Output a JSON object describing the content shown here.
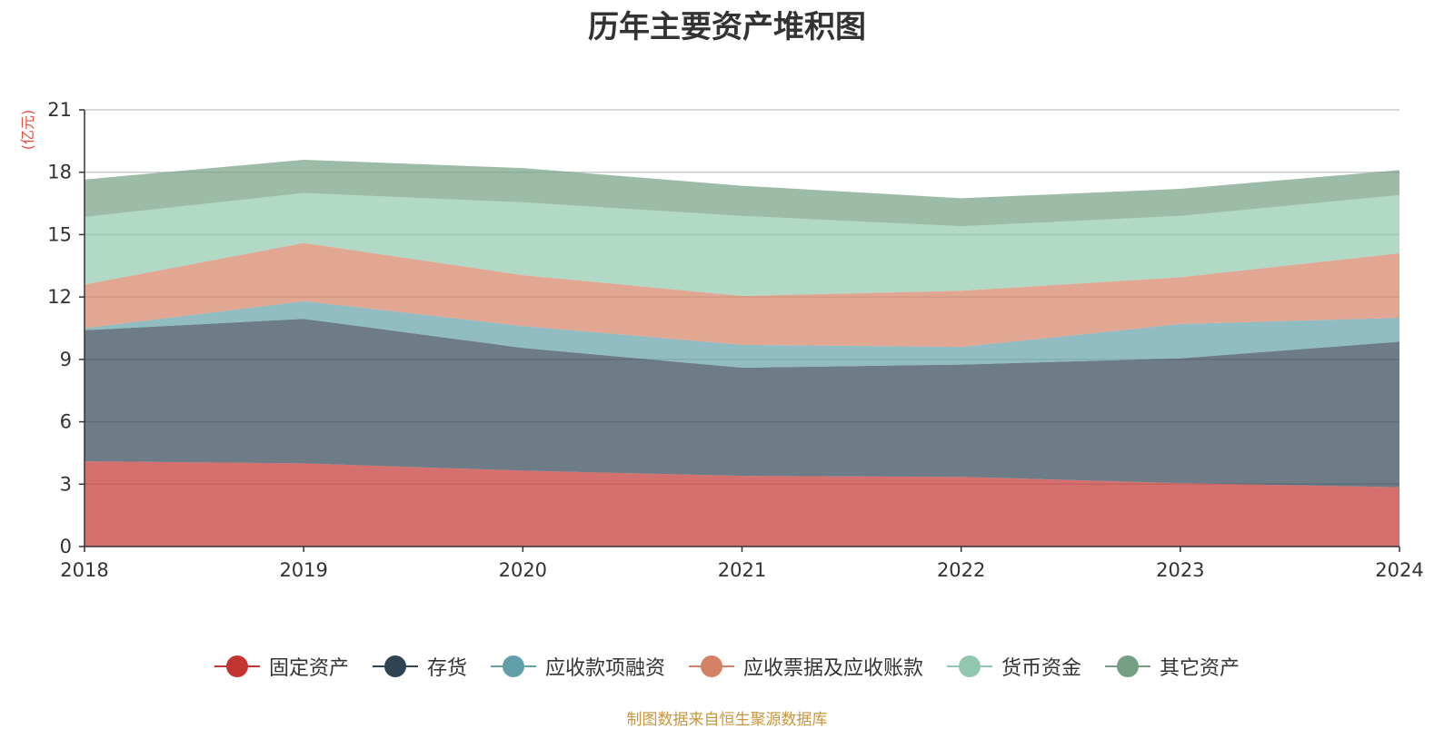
{
  "title": "历年主要资产堆积图",
  "source_note": "制图数据来自恒生聚源数据库",
  "chart_data": {
    "type": "area",
    "stacked": true,
    "title": "历年主要资产堆积图",
    "ylabel": "(亿元)",
    "xlabel": "",
    "categories": [
      "2018",
      "2019",
      "2020",
      "2021",
      "2022",
      "2023",
      "2024"
    ],
    "ylim": [
      0,
      21
    ],
    "yticks": [
      0,
      3,
      6,
      9,
      12,
      15,
      18,
      21
    ],
    "grid": true,
    "legend_position": "bottom",
    "series": [
      {
        "name": "固定资产",
        "color": "#c23531",
        "values": [
          4.1,
          4.0,
          3.65,
          3.4,
          3.35,
          3.05,
          2.85
        ]
      },
      {
        "name": "存货",
        "color": "#2f4554",
        "values": [
          6.3,
          6.95,
          5.9,
          5.2,
          5.4,
          6.0,
          7.0
        ]
      },
      {
        "name": "应收款项融资",
        "color": "#61a0a8",
        "values": [
          0.1,
          0.85,
          1.05,
          1.1,
          0.85,
          1.65,
          1.15
        ]
      },
      {
        "name": "应收票据及应收账款",
        "color": "#d48265",
        "values": [
          2.1,
          2.8,
          2.45,
          2.35,
          2.7,
          2.25,
          3.1
        ]
      },
      {
        "name": "货币资金",
        "color": "#91c7ae",
        "values": [
          3.25,
          2.4,
          3.5,
          3.85,
          3.1,
          2.95,
          2.8
        ]
      },
      {
        "name": "其它资产",
        "color": "#749f83",
        "values": [
          1.8,
          1.6,
          1.65,
          1.45,
          1.35,
          1.3,
          1.2
        ]
      }
    ]
  }
}
